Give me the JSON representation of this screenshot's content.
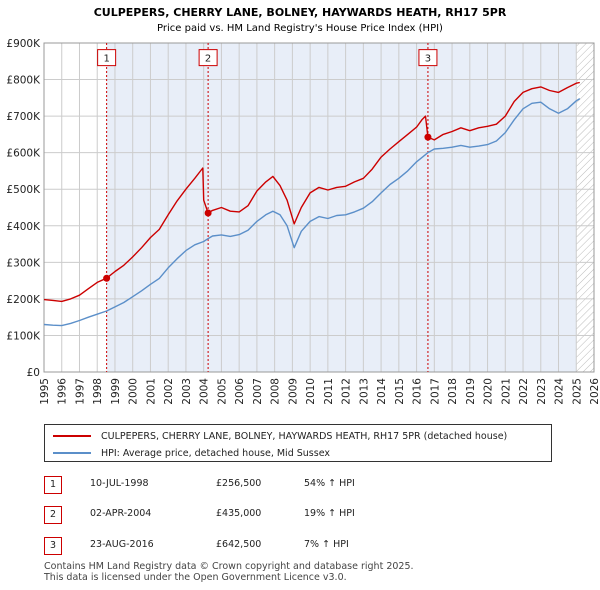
{
  "chart_data": {
    "type": "line",
    "title": "CULPEPERS, CHERRY LANE, BOLNEY, HAYWARDS HEATH, RH17 5PR",
    "subtitle": "Price paid vs. HM Land Registry's House Price Index (HPI)",
    "xlim": [
      1995,
      2026
    ],
    "ylim": [
      0,
      900000
    ],
    "y_ticks": [
      {
        "value": 0,
        "label": "£0"
      },
      {
        "value": 100000,
        "label": "£100K"
      },
      {
        "value": 200000,
        "label": "£200K"
      },
      {
        "value": 300000,
        "label": "£300K"
      },
      {
        "value": 400000,
        "label": "£400K"
      },
      {
        "value": 500000,
        "label": "£500K"
      },
      {
        "value": 600000,
        "label": "£600K"
      },
      {
        "value": 700000,
        "label": "£700K"
      },
      {
        "value": 800000,
        "label": "£800K"
      },
      {
        "value": 900000,
        "label": "£900K"
      }
    ],
    "x_ticks": [
      "1995",
      "1996",
      "1997",
      "1998",
      "1999",
      "2000",
      "2001",
      "2002",
      "2003",
      "2004",
      "2005",
      "2006",
      "2007",
      "2008",
      "2009",
      "2010",
      "2011",
      "2012",
      "2013",
      "2014",
      "2015",
      "2016",
      "2017",
      "2018",
      "2019",
      "2020",
      "2021",
      "2022",
      "2023",
      "2024",
      "2025",
      "2026"
    ],
    "future_start": 2025.0,
    "series": [
      {
        "name": "CULPEPERS, CHERRY LANE, BOLNEY, HAYWARDS HEATH, RH17 5PR (detached house)",
        "color": "#cc0000",
        "points": [
          [
            1995.0,
            198000
          ],
          [
            1995.5,
            196000
          ],
          [
            1996.0,
            193000
          ],
          [
            1996.5,
            200000
          ],
          [
            1997.0,
            210000
          ],
          [
            1997.5,
            228000
          ],
          [
            1998.0,
            245000
          ],
          [
            1998.53,
            256500
          ],
          [
            1999.0,
            275000
          ],
          [
            1999.5,
            292000
          ],
          [
            2000.0,
            315000
          ],
          [
            2000.5,
            340000
          ],
          [
            2001.0,
            368000
          ],
          [
            2001.5,
            390000
          ],
          [
            2002.0,
            430000
          ],
          [
            2002.5,
            468000
          ],
          [
            2003.0,
            500000
          ],
          [
            2003.5,
            530000
          ],
          [
            2003.95,
            558000
          ],
          [
            2004.0,
            470000
          ],
          [
            2004.25,
            435000
          ],
          [
            2004.5,
            442000
          ],
          [
            2005.0,
            450000
          ],
          [
            2005.5,
            440000
          ],
          [
            2006.0,
            438000
          ],
          [
            2006.5,
            455000
          ],
          [
            2007.0,
            495000
          ],
          [
            2007.5,
            520000
          ],
          [
            2007.9,
            535000
          ],
          [
            2008.3,
            510000
          ],
          [
            2008.7,
            470000
          ],
          [
            2009.1,
            405000
          ],
          [
            2009.5,
            450000
          ],
          [
            2010.0,
            490000
          ],
          [
            2010.5,
            505000
          ],
          [
            2011.0,
            498000
          ],
          [
            2011.5,
            505000
          ],
          [
            2012.0,
            508000
          ],
          [
            2012.5,
            520000
          ],
          [
            2013.0,
            530000
          ],
          [
            2013.5,
            555000
          ],
          [
            2014.0,
            588000
          ],
          [
            2014.5,
            610000
          ],
          [
            2015.0,
            630000
          ],
          [
            2015.5,
            650000
          ],
          [
            2016.0,
            670000
          ],
          [
            2016.3,
            690000
          ],
          [
            2016.5,
            700000
          ],
          [
            2016.64,
            642500
          ],
          [
            2017.0,
            635000
          ],
          [
            2017.5,
            650000
          ],
          [
            2018.0,
            658000
          ],
          [
            2018.5,
            668000
          ],
          [
            2019.0,
            660000
          ],
          [
            2019.5,
            668000
          ],
          [
            2020.0,
            672000
          ],
          [
            2020.5,
            678000
          ],
          [
            2021.0,
            700000
          ],
          [
            2021.5,
            740000
          ],
          [
            2022.0,
            765000
          ],
          [
            2022.5,
            775000
          ],
          [
            2023.0,
            780000
          ],
          [
            2023.5,
            770000
          ],
          [
            2024.0,
            765000
          ],
          [
            2024.5,
            778000
          ],
          [
            2025.0,
            790000
          ],
          [
            2025.2,
            792000
          ]
        ]
      },
      {
        "name": "HPI: Average price, detached house, Mid Sussex",
        "color": "#5b8fc9",
        "points": [
          [
            1995.0,
            130000
          ],
          [
            1995.5,
            128000
          ],
          [
            1996.0,
            127000
          ],
          [
            1996.5,
            133000
          ],
          [
            1997.0,
            141000
          ],
          [
            1997.5,
            150000
          ],
          [
            1998.0,
            158000
          ],
          [
            1998.53,
            167000
          ],
          [
            1999.0,
            178000
          ],
          [
            1999.5,
            190000
          ],
          [
            2000.0,
            206000
          ],
          [
            2000.5,
            222000
          ],
          [
            2001.0,
            240000
          ],
          [
            2001.5,
            256000
          ],
          [
            2002.0,
            285000
          ],
          [
            2002.5,
            310000
          ],
          [
            2003.0,
            332000
          ],
          [
            2003.5,
            348000
          ],
          [
            2004.0,
            357000
          ],
          [
            2004.25,
            365000
          ],
          [
            2004.5,
            372000
          ],
          [
            2005.0,
            375000
          ],
          [
            2005.5,
            371000
          ],
          [
            2006.0,
            376000
          ],
          [
            2006.5,
            388000
          ],
          [
            2007.0,
            412000
          ],
          [
            2007.5,
            430000
          ],
          [
            2007.9,
            440000
          ],
          [
            2008.3,
            430000
          ],
          [
            2008.7,
            400000
          ],
          [
            2009.1,
            340000
          ],
          [
            2009.5,
            385000
          ],
          [
            2010.0,
            412000
          ],
          [
            2010.5,
            425000
          ],
          [
            2011.0,
            420000
          ],
          [
            2011.5,
            428000
          ],
          [
            2012.0,
            430000
          ],
          [
            2012.5,
            438000
          ],
          [
            2013.0,
            448000
          ],
          [
            2013.5,
            466000
          ],
          [
            2014.0,
            490000
          ],
          [
            2014.5,
            513000
          ],
          [
            2015.0,
            530000
          ],
          [
            2015.5,
            550000
          ],
          [
            2016.0,
            575000
          ],
          [
            2016.64,
            600000
          ],
          [
            2017.0,
            610000
          ],
          [
            2017.5,
            612000
          ],
          [
            2018.0,
            615000
          ],
          [
            2018.5,
            620000
          ],
          [
            2019.0,
            615000
          ],
          [
            2019.5,
            618000
          ],
          [
            2020.0,
            622000
          ],
          [
            2020.5,
            632000
          ],
          [
            2021.0,
            655000
          ],
          [
            2021.5,
            690000
          ],
          [
            2022.0,
            720000
          ],
          [
            2022.5,
            735000
          ],
          [
            2023.0,
            738000
          ],
          [
            2023.5,
            720000
          ],
          [
            2024.0,
            708000
          ],
          [
            2024.5,
            720000
          ],
          [
            2025.0,
            742000
          ],
          [
            2025.2,
            748000
          ]
        ]
      }
    ],
    "transactions": [
      {
        "label": "1",
        "x": 1998.53,
        "value": 256500,
        "marker_value": 860000
      },
      {
        "label": "2",
        "x": 2004.25,
        "value": 435000,
        "marker_value": 860000
      },
      {
        "label": "3",
        "x": 2016.64,
        "value": 642500,
        "marker_value": 860000
      }
    ],
    "colors": {
      "grid": "#cccccc",
      "shade": "#e8eef8",
      "border": "#999999"
    }
  },
  "legend": {
    "red_label": "CULPEPERS, CHERRY LANE, BOLNEY, HAYWARDS HEATH, RH17 5PR (detached house)",
    "blue_label": "HPI: Average price, detached house, Mid Sussex"
  },
  "transactions_table": [
    {
      "num": "1",
      "date": "10-JUL-1998",
      "price": "£256,500",
      "hpi": "54% ↑ HPI"
    },
    {
      "num": "2",
      "date": "02-APR-2004",
      "price": "£435,000",
      "hpi": "19% ↑ HPI"
    },
    {
      "num": "3",
      "date": "23-AUG-2016",
      "price": "£642,500",
      "hpi": "7% ↑ HPI"
    }
  ],
  "footer": {
    "line1": "Contains HM Land Registry data © Crown copyright and database right 2025.",
    "line2": "This data is licensed under the Open Government Licence v3.0."
  }
}
